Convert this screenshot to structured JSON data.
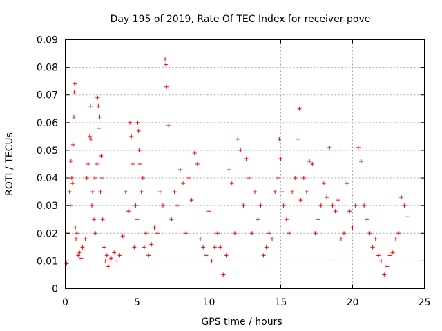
{
  "chart_data": {
    "type": "scatter",
    "title": "Day 195 of 2019, Rate Of TEC Index for receiver pove",
    "xlabel": "GPS time / hours",
    "ylabel": "ROTI / TECUs",
    "xlim": [
      0,
      25
    ],
    "ylim": [
      0,
      0.09
    ],
    "xticks": [
      "0",
      "5",
      "10",
      "15",
      "20",
      "25"
    ],
    "yticks": [
      "0",
      "0.01",
      "0.02",
      "0.03",
      "0.04",
      "0.05",
      "0.06",
      "0.07",
      "0.08",
      "0.09"
    ],
    "grid": true,
    "marker": "+",
    "color": "#ff0000",
    "series": [
      {
        "x": [
          0.1,
          0.2,
          0.3,
          0.35,
          0.4,
          0.45,
          0.5,
          0.55,
          0.6,
          0.62,
          0.65,
          0.7,
          0.75,
          0.8,
          0.9,
          1.0,
          1.1,
          1.2,
          1.3,
          1.4,
          1.5,
          1.6,
          1.7,
          1.75,
          1.8,
          1.85,
          1.9,
          2.0,
          2.05,
          2.1,
          2.2,
          2.25,
          2.3,
          2.35,
          2.4,
          2.45,
          2.5,
          2.55,
          2.6,
          2.7,
          2.8,
          2.9,
          3.0,
          3.2,
          3.4,
          3.6,
          3.8,
          4.0,
          4.2,
          4.4,
          4.5,
          4.6,
          4.7,
          4.8,
          4.9,
          5.0,
          5.05,
          5.1,
          5.15,
          5.2,
          5.3,
          5.4,
          5.5,
          5.6,
          5.8,
          6.0,
          6.2,
          6.4,
          6.6,
          6.8,
          6.95,
          7.0,
          7.05,
          7.2,
          7.4,
          7.6,
          7.8,
          8.0,
          8.2,
          8.4,
          8.6,
          8.8,
          9.0,
          9.2,
          9.4,
          9.6,
          9.8,
          10.0,
          10.2,
          10.4,
          10.6,
          10.8,
          11.0,
          11.2,
          11.4,
          11.6,
          11.8,
          12.0,
          12.2,
          12.4,
          12.6,
          12.8,
          13.0,
          13.2,
          13.4,
          13.6,
          13.8,
          14.0,
          14.2,
          14.4,
          14.6,
          14.8,
          14.9,
          15.0,
          15.1,
          15.2,
          15.4,
          15.6,
          15.8,
          16.0,
          16.2,
          16.3,
          16.4,
          16.6,
          16.8,
          17.0,
          17.2,
          17.4,
          17.6,
          17.8,
          18.0,
          18.2,
          18.4,
          18.6,
          18.8,
          19.0,
          19.2,
          19.4,
          19.6,
          19.8,
          20.0,
          20.2,
          20.4,
          20.6,
          20.8,
          21.0,
          21.2,
          21.4,
          21.6,
          21.8,
          22.0,
          22.2,
          22.4,
          22.6,
          22.8,
          23.0,
          23.2,
          23.4,
          23.6,
          23.8
        ],
        "y": [
          0.009,
          0.02,
          0.035,
          0.03,
          0.046,
          0.04,
          0.038,
          0.052,
          0.062,
          0.071,
          0.074,
          0.022,
          0.018,
          0.02,
          0.012,
          0.013,
          0.011,
          0.015,
          0.014,
          0.018,
          0.04,
          0.045,
          0.055,
          0.066,
          0.054,
          0.03,
          0.035,
          0.025,
          0.04,
          0.02,
          0.045,
          0.069,
          0.066,
          0.058,
          0.062,
          0.035,
          0.048,
          0.04,
          0.025,
          0.015,
          0.01,
          0.012,
          0.008,
          0.011,
          0.013,
          0.01,
          0.012,
          0.019,
          0.035,
          0.028,
          0.06,
          0.055,
          0.045,
          0.015,
          0.03,
          0.025,
          0.06,
          0.057,
          0.05,
          0.045,
          0.035,
          0.04,
          0.015,
          0.02,
          0.012,
          0.016,
          0.022,
          0.02,
          0.035,
          0.03,
          0.083,
          0.081,
          0.073,
          0.059,
          0.025,
          0.035,
          0.03,
          0.043,
          0.038,
          0.02,
          0.04,
          0.032,
          0.049,
          0.045,
          0.018,
          0.015,
          0.012,
          0.028,
          0.01,
          0.015,
          0.02,
          0.015,
          0.005,
          0.012,
          0.043,
          0.038,
          0.02,
          0.054,
          0.05,
          0.03,
          0.047,
          0.04,
          0.02,
          0.035,
          0.025,
          0.03,
          0.012,
          0.015,
          0.02,
          0.018,
          0.035,
          0.04,
          0.054,
          0.047,
          0.035,
          0.03,
          0.025,
          0.02,
          0.035,
          0.04,
          0.054,
          0.065,
          0.032,
          0.04,
          0.035,
          0.046,
          0.045,
          0.02,
          0.025,
          0.03,
          0.038,
          0.033,
          0.051,
          0.03,
          0.028,
          0.032,
          0.018,
          0.02,
          0.038,
          0.028,
          0.022,
          0.03,
          0.051,
          0.046,
          0.03,
          0.025,
          0.02,
          0.015,
          0.018,
          0.012,
          0.01,
          0.005,
          0.008,
          0.012,
          0.013,
          0.018,
          0.02,
          0.033,
          0.03,
          0.026
        ]
      }
    ]
  }
}
